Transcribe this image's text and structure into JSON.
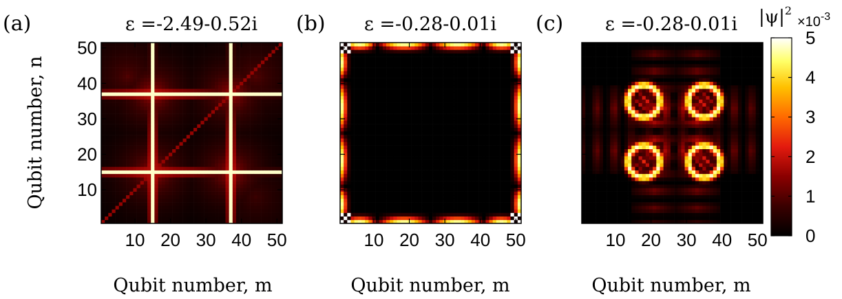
{
  "colors": {
    "colormap": [
      "#000000",
      "#3a0000",
      "#8b0000",
      "#e31a0e",
      "#ff6a00",
      "#ffc000",
      "#ffff66",
      "#ffffff"
    ],
    "axes": "#000000",
    "background": "#ffffff"
  },
  "chart_data": [
    {
      "type": "heatmap",
      "panel_label": "(a)",
      "title": "ε =-2.49-0.52i",
      "xlabel": "Qubit number, m",
      "ylabel": "Qubit number, n",
      "xlim": [
        1,
        51
      ],
      "ylim": [
        1,
        51
      ],
      "xticks": [
        10,
        20,
        30,
        40,
        50
      ],
      "yticks": [
        10,
        20,
        30,
        40,
        50
      ],
      "pattern": "bright lines at m=15, m=37, n=15, n=37 with peaks at intersections and diagonal",
      "hot_indices": [
        15,
        37
      ]
    },
    {
      "type": "heatmap",
      "panel_label": "(b)",
      "title": "ε =-0.28-0.01i",
      "xlabel": "Qubit number, m",
      "xlim": [
        1,
        51
      ],
      "ylim": [
        1,
        51
      ],
      "xticks": [
        10,
        20,
        30,
        40,
        50
      ],
      "yticks": [
        10,
        20,
        30,
        40,
        50
      ],
      "pattern": "intensity localized on the border of the lattice with lobes and bright corners"
    },
    {
      "type": "heatmap",
      "panel_label": "(c)",
      "title": "ε =-0.28-0.01i",
      "xlabel": "Qubit number, m",
      "xlim": [
        1,
        51
      ],
      "ylim": [
        1,
        51
      ],
      "xticks": [
        10,
        20,
        30,
        40,
        50
      ],
      "yticks": [
        10,
        20,
        30,
        40,
        50
      ],
      "pattern": "four rings centered near (18,18),(35,18),(18,35),(35,35) with stripes",
      "ring_centers": [
        [
          18,
          18
        ],
        [
          35,
          18
        ],
        [
          18,
          35
        ],
        [
          35,
          35
        ]
      ]
    }
  ],
  "colorbar": {
    "label": "|ψ|",
    "label_sup": "2",
    "scale": "×10",
    "scale_exp": "-3",
    "range": [
      0,
      5
    ],
    "ticks": [
      "0",
      "1",
      "2",
      "3",
      "4",
      "5"
    ]
  }
}
